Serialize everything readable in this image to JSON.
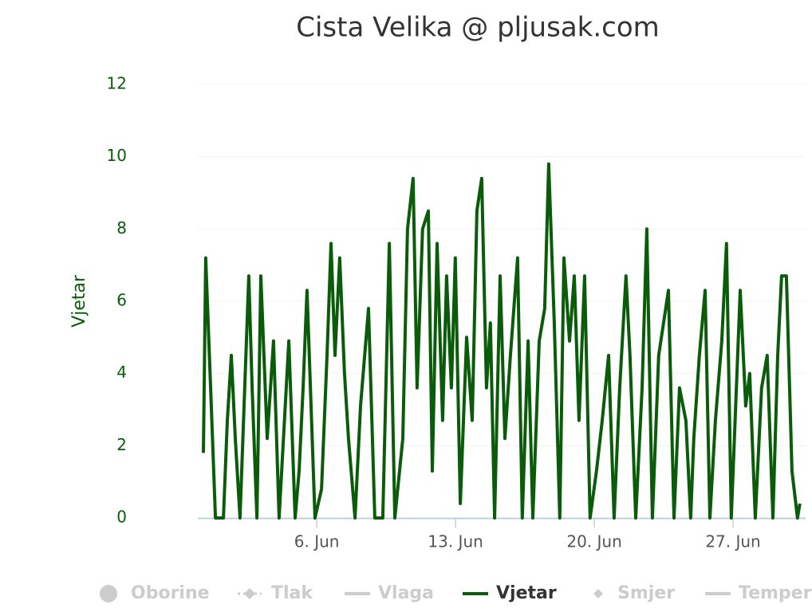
{
  "chart_data": {
    "type": "line",
    "title": "Cista Velika @ pljusak.com",
    "y_axis_label": "Vjetar",
    "xlim": [
      0,
      30.66
    ],
    "xticks": [
      {
        "value": 6,
        "label": "6. Jun"
      },
      {
        "value": 13,
        "label": "13. Jun"
      },
      {
        "value": 20,
        "label": "20. Jun"
      },
      {
        "value": 27,
        "label": "27. Jun"
      }
    ],
    "ylim": [
      0,
      12
    ],
    "yticks": [
      0,
      2,
      4,
      6,
      8,
      10,
      12
    ],
    "grid": true,
    "x": [
      0.28,
      0.4,
      0.68,
      0.89,
      1.29,
      1.49,
      1.69,
      1.89,
      2.13,
      2.57,
      2.74,
      2.98,
      3.18,
      3.5,
      3.82,
      4.1,
      4.59,
      4.91,
      5.11,
      5.31,
      5.51,
      5.91,
      6.24,
      6.52,
      6.72,
      6.92,
      7.16,
      7.4,
      7.6,
      7.93,
      8.21,
      8.61,
      8.93,
      9.33,
      9.66,
      9.94,
      10.34,
      10.58,
      10.86,
      11.06,
      11.34,
      11.63,
      11.83,
      12.07,
      12.35,
      12.55,
      12.79,
      12.99,
      13.24,
      13.56,
      13.84,
      14.08,
      14.32,
      14.56,
      14.76,
      14.97,
      15.25,
      15.49,
      15.77,
      16.13,
      16.37,
      16.66,
      16.9,
      17.22,
      17.5,
      17.7,
      17.98,
      18.26,
      18.47,
      18.75,
      18.99,
      19.23,
      19.51,
      19.79,
      20.11,
      20.4,
      20.72,
      21.0,
      21.28,
      21.6,
      21.8,
      22.09,
      22.41,
      22.65,
      22.93,
      23.25,
      23.74,
      24.02,
      24.3,
      24.62,
      24.86,
      25.02,
      25.3,
      25.59,
      25.83,
      26.11,
      26.43,
      26.67,
      26.91,
      27.36,
      27.64,
      27.84,
      28.12,
      28.44,
      28.72,
      29.01,
      29.25,
      29.45,
      29.69,
      29.97,
      30.25,
      30.37
    ],
    "series": [
      {
        "name": "Vjetar",
        "color": "#0a5c0a",
        "values": [
          1.8,
          7.2,
          3.1,
          0,
          0,
          2.7,
          4.5,
          2.2,
          0,
          6.7,
          3.6,
          0,
          6.7,
          2.2,
          4.9,
          0,
          4.9,
          0,
          1.3,
          3.6,
          6.3,
          0,
          0.8,
          4.5,
          7.6,
          4.5,
          7.2,
          4,
          2.2,
          0,
          3.1,
          5.8,
          0,
          0,
          7.6,
          0,
          2.2,
          8,
          9.4,
          3.6,
          8,
          8.5,
          1.3,
          7.6,
          2.7,
          6.7,
          3.6,
          7.2,
          0.4,
          5,
          2.7,
          8.5,
          9.4,
          3.6,
          5.4,
          0,
          6.7,
          2.2,
          4.5,
          7.2,
          0,
          4.9,
          0,
          4.9,
          5.8,
          9.8,
          5.4,
          0,
          7.2,
          4.9,
          6.7,
          2.7,
          6.7,
          0,
          1.3,
          2.7,
          4.5,
          0,
          3.6,
          6.7,
          4.5,
          0,
          3.6,
          8,
          0,
          4.5,
          6.3,
          0,
          3.6,
          2.7,
          0,
          2.2,
          4.5,
          6.3,
          0,
          2.7,
          4.9,
          7.6,
          0,
          6.3,
          3.1,
          4,
          0,
          3.6,
          4.5,
          0,
          4.5,
          6.7,
          6.7,
          1.3,
          0,
          0.4
        ]
      }
    ],
    "legend": [
      {
        "name": "Oborine",
        "symbol": "circle",
        "active": false
      },
      {
        "name": "Tlak",
        "symbol": "dash-diamond",
        "active": false
      },
      {
        "name": "Vlaga",
        "symbol": "line",
        "active": false
      },
      {
        "name": "Vjetar",
        "symbol": "line",
        "active": true
      },
      {
        "name": "Smjer",
        "symbol": "diamond",
        "active": false
      },
      {
        "name": "Temperatura",
        "symbol": "line",
        "active": false
      }
    ]
  }
}
